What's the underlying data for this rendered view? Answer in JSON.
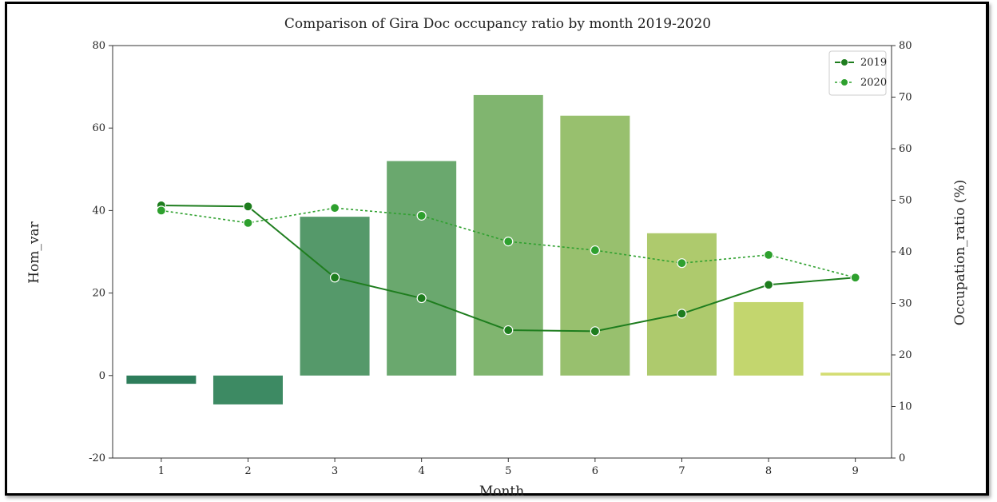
{
  "chart_data": {
    "type": "bar+line",
    "title": "Comparison of Gira Doc occupancy ratio by month 2019-2020",
    "xlabel": "Month",
    "ylabel_left": "Hom_var",
    "ylabel_right": "Occupation_ratio (%)",
    "categories": [
      "1",
      "2",
      "3",
      "4",
      "5",
      "6",
      "7",
      "8",
      "9"
    ],
    "ylim_left": [
      -20,
      80
    ],
    "yticks_left": [
      -20,
      0,
      20,
      40,
      60,
      80
    ],
    "ylim_right": [
      0,
      80
    ],
    "yticks_right": [
      0,
      10,
      20,
      30,
      40,
      50,
      60,
      70,
      80
    ],
    "bars": {
      "name": "Hom_var",
      "values": [
        -2,
        -7,
        38.5,
        52,
        68,
        63,
        34.5,
        17.8,
        0.7
      ],
      "colors": [
        "#2e7d5b",
        "#3d8a63",
        "#55996a",
        "#6aa86e",
        "#80b56f",
        "#98c06e",
        "#aeca6d",
        "#c3d66e",
        "#d4dd73"
      ]
    },
    "series": [
      {
        "name": "2019",
        "style": "solid",
        "values": [
          49,
          48.8,
          35,
          31,
          24.8,
          24.6,
          28,
          33.6,
          35
        ]
      },
      {
        "name": "2020",
        "style": "dotted",
        "values": [
          48,
          45.6,
          48.5,
          47,
          42,
          40.3,
          37.8,
          39.4,
          35
        ]
      }
    ],
    "line_color": "#1e7d1e",
    "line_color_2020": "#2ea02e",
    "legend_position": "top-right",
    "grid": false
  }
}
